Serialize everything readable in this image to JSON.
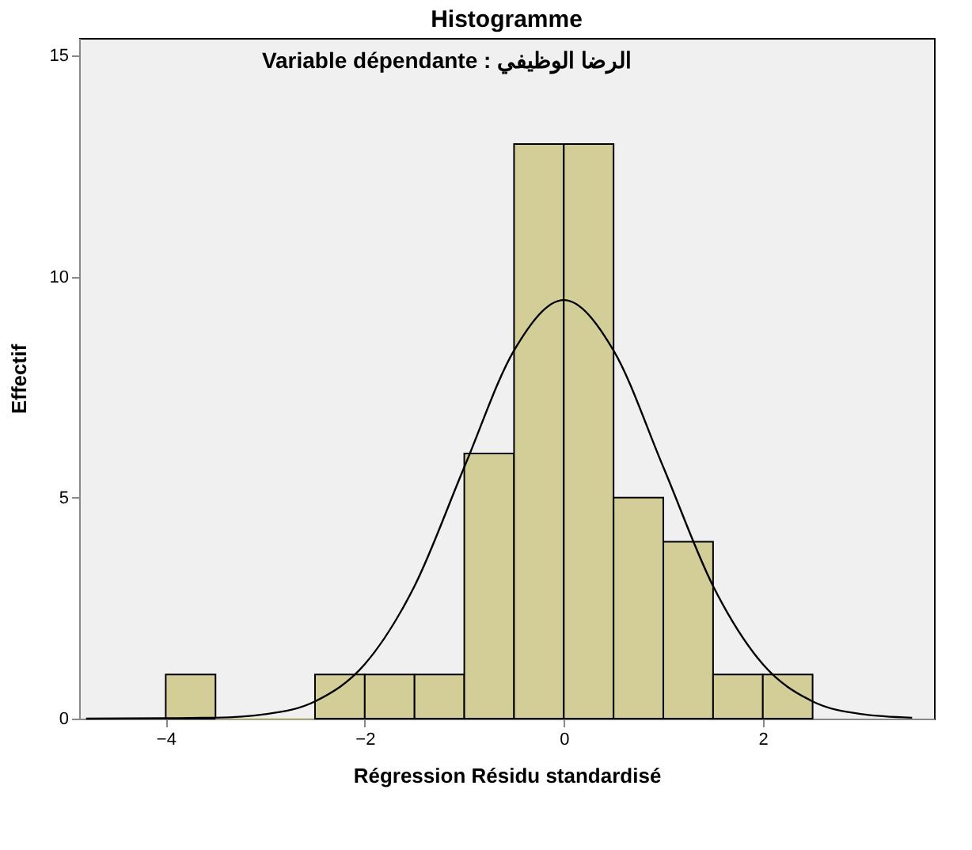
{
  "chart_data": {
    "type": "histogram",
    "title": "Histogramme",
    "subtitle": "Variable dépendante : الرضا الوظيفي",
    "xlabel": "Régression Résidu standardisé",
    "ylabel": "Effectif",
    "bins": [
      -4,
      -3.5,
      -3,
      -2.5,
      -2,
      -1.5,
      -1,
      -0.5,
      0,
      0.5,
      1,
      1.5,
      2,
      2.5
    ],
    "values": [
      1,
      0,
      0,
      1,
      1,
      1,
      6,
      13,
      13,
      5,
      4,
      1,
      1
    ],
    "color": "#d3ce97",
    "series": [
      {
        "type": "line",
        "color": "#000000",
        "x": [
          -4.8,
          -4,
          -3.5,
          -3,
          -2.5,
          -2,
          -1.5,
          -1,
          -0.5,
          0,
          0.5,
          1,
          1.5,
          2,
          2.5,
          3,
          3.5
        ],
        "values": [
          0,
          0.01,
          0.02,
          0.1,
          0.39,
          1.23,
          3.0,
          5.69,
          8.33,
          9.47,
          8.33,
          5.69,
          3.0,
          1.23,
          0.39,
          0.1,
          0.02
        ]
      }
    ],
    "xlim": [
      -4.87,
      3.72
    ],
    "ylim": [
      0,
      15.4
    ],
    "xticks": [
      -4,
      -2,
      0,
      2
    ],
    "yticks": [
      0,
      5,
      10,
      15
    ],
    "grid": false
  }
}
